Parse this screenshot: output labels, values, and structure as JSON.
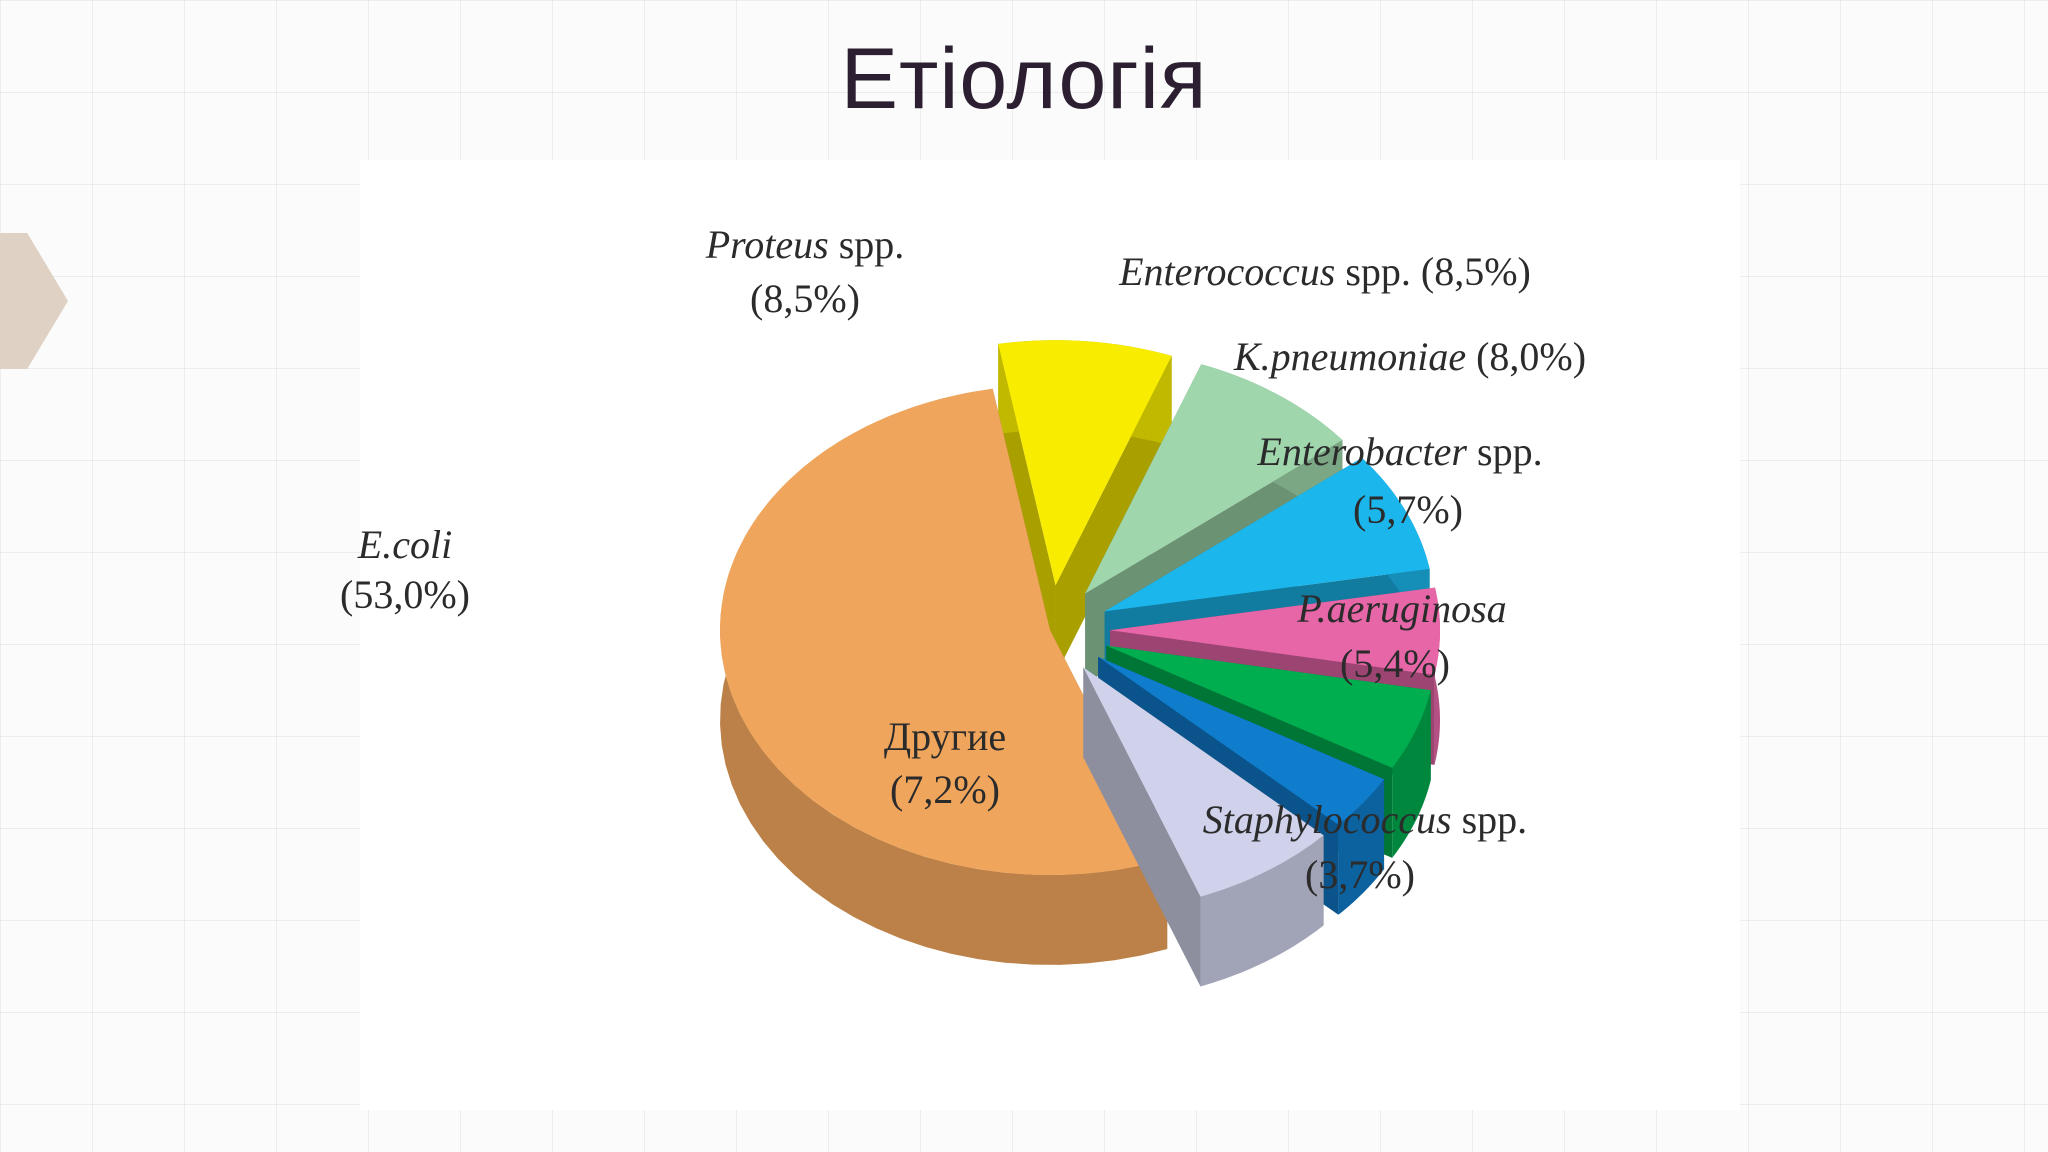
{
  "title": "Етіологія",
  "chart_data": {
    "type": "pie",
    "style": "3d-exploded",
    "slices": [
      {
        "name": "E.coli",
        "display": "E.coli",
        "italic": "E.coli",
        "suffix": "",
        "value_label": "(53,0%)",
        "value": 53.0,
        "color": "#f0a55c"
      },
      {
        "name": "Другие",
        "display": "Другие",
        "italic": "",
        "suffix": "Другие",
        "value_label": "(7,2%)",
        "value": 7.2,
        "color": "#cfd2ea"
      },
      {
        "name": "Staphylococcus spp.",
        "display": "Staphylococcus spp.",
        "italic": "Staphylococcus",
        "suffix": " spp.",
        "value_label": "(3,7%)",
        "value": 3.7,
        "color": "#0f7ccc"
      },
      {
        "name": "P.aeruginosa",
        "display": "P.aeruginosa",
        "italic": "P.aeruginosa",
        "suffix": "",
        "value_label": "(5,4%)",
        "value": 5.4,
        "color": "#00ad4f"
      },
      {
        "name": "Enterobacter spp.",
        "display": "Enterobacter spp.",
        "italic": "Enterobacter",
        "suffix": " spp.",
        "value_label": "(5,7%)",
        "value": 5.7,
        "color": "#e766a8"
      },
      {
        "name": "K.pneumoniae",
        "display": "K.pneumoniae (8,0%)",
        "italic": "K.pneumoniae",
        "suffix": " (8,0%)",
        "value_label": "",
        "value": 8.0,
        "color": "#1bb6ec"
      },
      {
        "name": "Enterococcus spp.",
        "display": "Enterococcus spp. (8,5%)",
        "italic": "Enterococcus",
        "suffix": " spp. (8,5%)",
        "value_label": "",
        "value": 8.5,
        "color": "#9fd6ab"
      },
      {
        "name": "Proteus spp.",
        "display": "Proteus spp.",
        "italic": "Proteus",
        "suffix": " spp.",
        "value_label": "(8,5%)",
        "value": 8.5,
        "color": "#f8ec00"
      }
    ]
  }
}
